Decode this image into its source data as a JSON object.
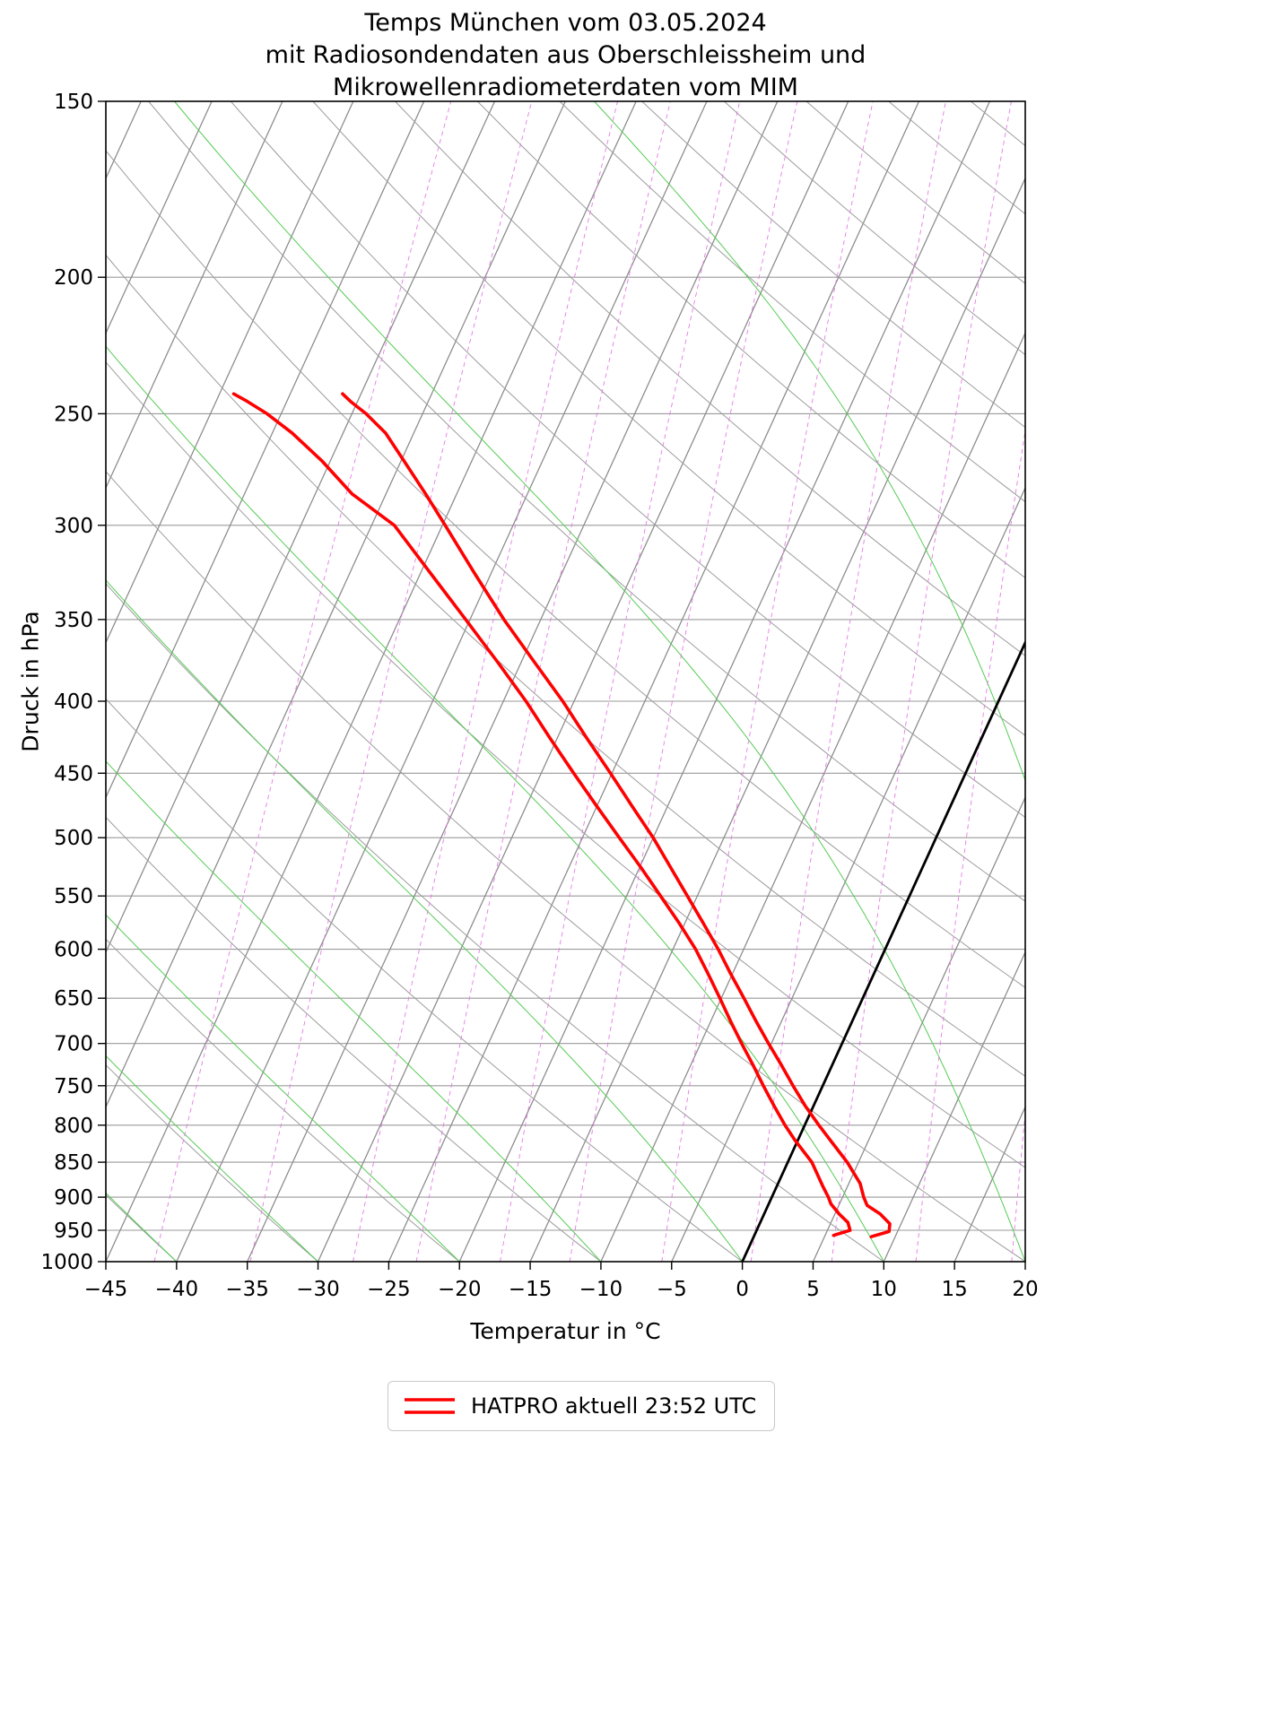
{
  "title": {
    "line1": "Temps München vom 03.05.2024",
    "line2": "mit Radiosondendaten aus Oberschleissheim und",
    "line3": "Mikrowellenradiometerdaten vom MIM"
  },
  "axes": {
    "x_label": "Temperatur in °C",
    "y_label": "Druck in hPa",
    "x_ticks": [
      -45,
      -40,
      -35,
      -30,
      -25,
      -20,
      -15,
      -10,
      -5,
      0,
      5,
      10,
      15,
      20
    ],
    "y_ticks": [
      150,
      200,
      250,
      300,
      350,
      400,
      450,
      500,
      550,
      600,
      650,
      700,
      750,
      800,
      850,
      900,
      950,
      1000
    ]
  },
  "legend": {
    "label": "HATPRO aktuell 23:52 UTC",
    "line_color": "#ff0000"
  },
  "colors": {
    "profile": "#ff0000",
    "isotherm": "#8a8a8a",
    "dry_adiabat": "#9c9c9c",
    "moist_adiabat": "#55cb55",
    "mixing_ratio": "#e27ce2",
    "pressure_line": "#9a9a9a",
    "zero_isotherm": "#000000",
    "frame": "#000000"
  },
  "chart_data": {
    "type": "line",
    "subtype": "skew-t-log-p",
    "title": "Temps München vom 03.05.2024 mit Radiosondendaten aus Oberschleissheim und Mikrowellenradiometerdaten vom MIM",
    "xlabel": "Temperatur in °C",
    "ylabel": "Druck in hPa",
    "x_range_c": [
      -45,
      20
    ],
    "pressure_range_hpa": [
      150,
      1000
    ],
    "y_scale": "log",
    "skew_c_per_decade": 45.5,
    "grid": {
      "isotherm_step_c": 5,
      "dry_adiabats_c": {
        "min": -40,
        "max": 170,
        "step": 10
      },
      "moist_adiabats_c": {
        "min": -50,
        "max": 70,
        "step": 10
      },
      "mixing_ratio_g_per_kg": [
        0.1,
        0.2,
        0.4,
        0.6,
        1,
        1.5,
        2.5,
        4,
        6,
        9,
        14,
        20
      ]
    },
    "highlight_isotherm_c": 0,
    "series": [
      {
        "name": "HATPRO Temperatur aktuell 23:52 UTC",
        "color": "#ff0000",
        "points_p_t": [
          [
            960,
            8.3
          ],
          [
            952,
            9.4
          ],
          [
            940,
            9.2
          ],
          [
            925,
            8.2
          ],
          [
            912,
            7.0
          ],
          [
            900,
            6.5
          ],
          [
            880,
            5.8
          ],
          [
            850,
            4.2
          ],
          [
            820,
            2.3
          ],
          [
            800,
            1.0
          ],
          [
            775,
            -0.6
          ],
          [
            750,
            -2.1
          ],
          [
            725,
            -3.6
          ],
          [
            700,
            -5.2
          ],
          [
            675,
            -6.8
          ],
          [
            650,
            -8.4
          ],
          [
            625,
            -10.1
          ],
          [
            600,
            -11.8
          ],
          [
            575,
            -13.7
          ],
          [
            550,
            -15.7
          ],
          [
            525,
            -17.8
          ],
          [
            500,
            -20.0
          ],
          [
            475,
            -22.5
          ],
          [
            450,
            -25.1
          ],
          [
            425,
            -27.9
          ],
          [
            400,
            -30.8
          ],
          [
            375,
            -34.1
          ],
          [
            350,
            -37.6
          ],
          [
            325,
            -41.1
          ],
          [
            300,
            -44.8
          ],
          [
            285,
            -47.2
          ],
          [
            270,
            -49.8
          ],
          [
            258,
            -52.0
          ],
          [
            250,
            -54.0
          ],
          [
            245,
            -55.5
          ],
          [
            242,
            -56.3
          ]
        ]
      },
      {
        "name": "HATPRO Taupunkt aktuell 23:52 UTC",
        "color": "#ff0000",
        "points_p_t": [
          [
            958,
            5.6
          ],
          [
            950,
            6.6
          ],
          [
            938,
            6.2
          ],
          [
            925,
            5.3
          ],
          [
            910,
            4.4
          ],
          [
            900,
            4.0
          ],
          [
            885,
            3.3
          ],
          [
            850,
            1.7
          ],
          [
            820,
            -0.2
          ],
          [
            800,
            -1.4
          ],
          [
            775,
            -2.8
          ],
          [
            750,
            -4.2
          ],
          [
            725,
            -5.6
          ],
          [
            700,
            -7.1
          ],
          [
            675,
            -8.6
          ],
          [
            650,
            -10.1
          ],
          [
            625,
            -11.7
          ],
          [
            600,
            -13.4
          ],
          [
            575,
            -15.4
          ],
          [
            550,
            -17.6
          ],
          [
            525,
            -19.9
          ],
          [
            500,
            -22.4
          ],
          [
            475,
            -25.0
          ],
          [
            450,
            -27.7
          ],
          [
            425,
            -30.5
          ],
          [
            400,
            -33.4
          ],
          [
            375,
            -36.7
          ],
          [
            350,
            -40.3
          ],
          [
            325,
            -44.2
          ],
          [
            300,
            -48.4
          ],
          [
            285,
            -52.4
          ],
          [
            270,
            -55.6
          ],
          [
            258,
            -58.6
          ],
          [
            250,
            -61.0
          ],
          [
            245,
            -62.8
          ],
          [
            242,
            -64.0
          ]
        ]
      }
    ]
  }
}
